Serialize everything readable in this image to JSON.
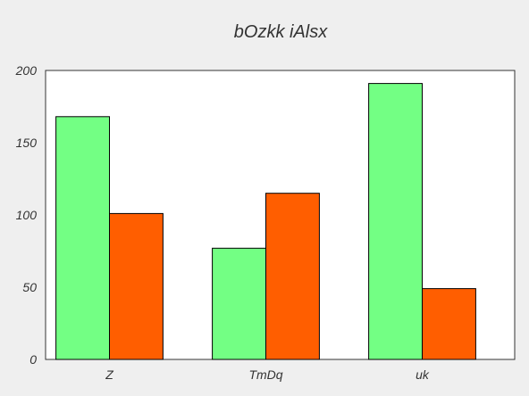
{
  "chart_data": {
    "type": "bar",
    "title": "bOzkk iAlsx",
    "xlabel": "",
    "ylabel": "",
    "categories": [
      "Z",
      "TmDq",
      "uk"
    ],
    "series": [
      {
        "values": [
          168,
          77,
          191
        ],
        "color": "#73ff84"
      },
      {
        "values": [
          101,
          115,
          49
        ],
        "color": "#ff5e00"
      }
    ],
    "ylim": [
      0,
      200
    ],
    "yticks": [
      0,
      50,
      100,
      150,
      200
    ],
    "grid": false,
    "legend": "none",
    "colors": {
      "background": "#efefef",
      "plot_background": "#ffffff",
      "axis": "#333333"
    }
  }
}
